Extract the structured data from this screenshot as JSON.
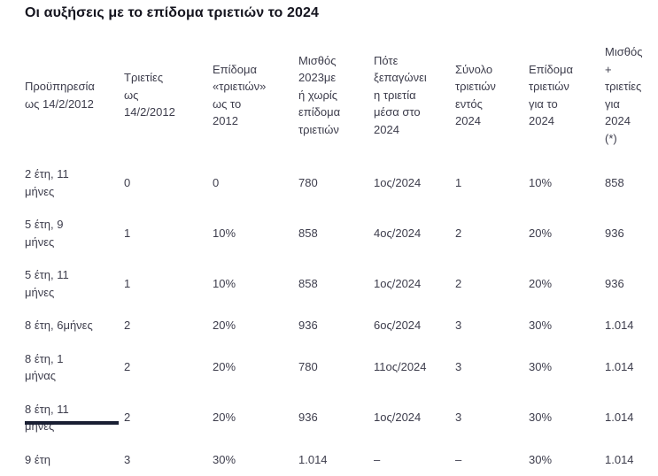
{
  "page": {
    "title": "Οι αυξήσεις με το επίδομα τριετιών το 2024"
  },
  "colors": {
    "background": "#ffffff",
    "title_text": "#15151f",
    "body_text": "#3d3d4c",
    "cutoff_bar": "#1a1f33"
  },
  "table": {
    "columns": [
      "Προϋπηρεσία\nως 14/2/2012",
      "Τριετίες\nως\n14/2/2012",
      "Επίδομα\n«τριετιών»\nως το\n2012",
      "Μισθός\n2023με\nή χωρίς\nεπίδομα\nτριετιών",
      "Πότε\nξεπαγώνει\nη τριετία\nμέσα στο\n2024",
      "Σύνολο\nτριετιών\nεντός\n2024",
      "Επίδομα\nτριετιών\nγια το\n2024",
      "Μισθός\n+\nτριετίες\nγια\n2024\n(*)"
    ],
    "rows": [
      [
        "2 έτη, 11\nμήνες",
        "0",
        "0",
        "780",
        "1ος/2024",
        "1",
        "10%",
        "858"
      ],
      [
        "5 έτη, 9\nμήνες",
        "1",
        "10%",
        "858",
        "4ος/2024",
        "2",
        "20%",
        "936"
      ],
      [
        "5 έτη, 11\nμήνες",
        "1",
        "10%",
        "858",
        "1ος/2024",
        "2",
        "20%",
        "936"
      ],
      [
        "8 έτη, 6μήνες",
        "2",
        "20%",
        "936",
        "6ος/2024",
        "3",
        "30%",
        "1.014"
      ],
      [
        "8 έτη, 1\nμήνας",
        "2",
        "20%",
        "780",
        "11ος/2024",
        "3",
        "30%",
        "1.014"
      ],
      [
        "8 έτη, 11\nμήνες",
        "2",
        "20%",
        "936",
        "1ος/2024",
        "3",
        "30%",
        "1.014"
      ],
      [
        "9 έτη",
        "3",
        "30%",
        "1.014",
        "–",
        "–",
        "30%",
        "1.014"
      ]
    ]
  },
  "chart_data": {
    "type": "table",
    "title": "Οι αυξήσεις με το επίδομα τριετιών το 2024",
    "columns": [
      "Προϋπηρεσία ως 14/2/2012",
      "Τριετίες ως 14/2/2012",
      "Επίδομα «τριετιών» ως το 2012",
      "Μισθός 2023με ή χωρίς επίδομα τριετιών",
      "Πότε ξεπαγώνει η τριετία μέσα στο 2024",
      "Σύνολο τριετιών εντός 2024",
      "Επίδομα τριετιών για το 2024",
      "Μισθός + τριετίες για 2024 (*)"
    ],
    "rows": [
      [
        "2 έτη, 11 μήνες",
        "0",
        "0",
        "780",
        "1ος/2024",
        "1",
        "10%",
        "858"
      ],
      [
        "5 έτη, 9 μήνες",
        "1",
        "10%",
        "858",
        "4ος/2024",
        "2",
        "20%",
        "936"
      ],
      [
        "5 έτη, 11 μήνες",
        "1",
        "10%",
        "858",
        "1ος/2024",
        "2",
        "20%",
        "936"
      ],
      [
        "8 έτη, 6μήνες",
        "2",
        "20%",
        "936",
        "6ος/2024",
        "3",
        "30%",
        "1.014"
      ],
      [
        "8 έτη, 1 μήνας",
        "2",
        "20%",
        "780",
        "11ος/2024",
        "3",
        "30%",
        "1.014"
      ],
      [
        "8 έτη, 11 μήνες",
        "2",
        "20%",
        "936",
        "1ος/2024",
        "3",
        "30%",
        "1.014"
      ],
      [
        "9 έτη",
        "3",
        "30%",
        "1.014",
        "–",
        "–",
        "30%",
        "1.014"
      ]
    ]
  }
}
